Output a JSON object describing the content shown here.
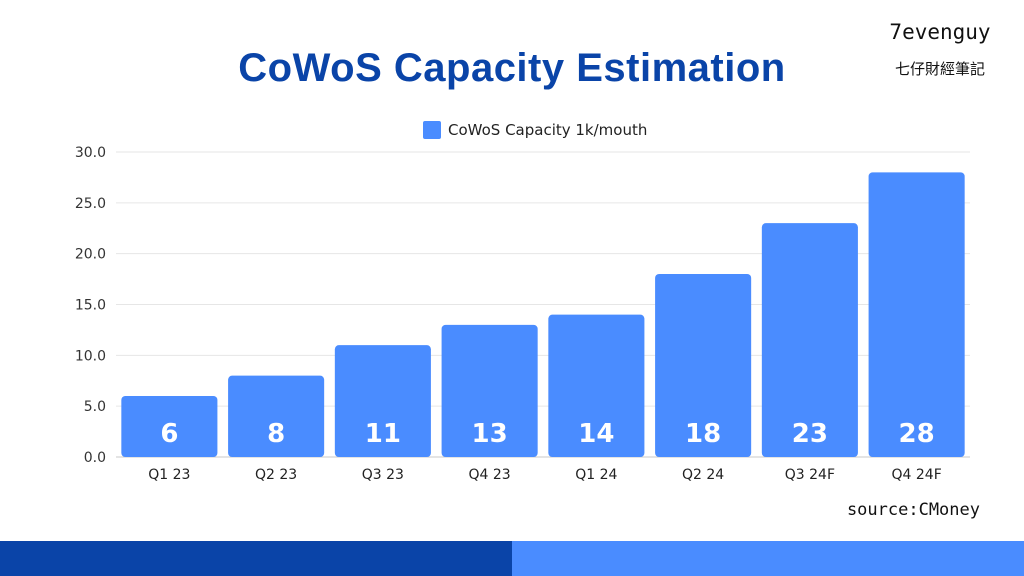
{
  "header": {
    "title": "CoWoS Capacity Estimation",
    "brand_name": "7evenguy",
    "brand_subtitle": "七仔財經筆記"
  },
  "footer": {
    "source": "source:CMoney"
  },
  "colors": {
    "title": "#0a44a8",
    "bar": "#4a8cff",
    "bar_label": "#ffffff",
    "grid": "#e6e6e6",
    "footer_dark": "#0a44a8",
    "footer_light": "#4a8cff"
  },
  "chart_data": {
    "type": "bar",
    "title": "CoWoS Capacity Estimation",
    "xlabel": "",
    "ylabel": "",
    "ylim": [
      0,
      30
    ],
    "yticks": [
      "0.0",
      "5.0",
      "10.0",
      "15.0",
      "20.0",
      "25.0",
      "30.0"
    ],
    "grid": true,
    "legend": "top-center",
    "categories": [
      "Q1 23",
      "Q2 23",
      "Q3 23",
      "Q4 23",
      "Q1 24",
      "Q2 24",
      "Q3 24F",
      "Q4 24F"
    ],
    "series": [
      {
        "name": "CoWoS Capacity 1k/mouth",
        "values": [
          6,
          8,
          11,
          13,
          14,
          18,
          23,
          28
        ]
      }
    ]
  }
}
